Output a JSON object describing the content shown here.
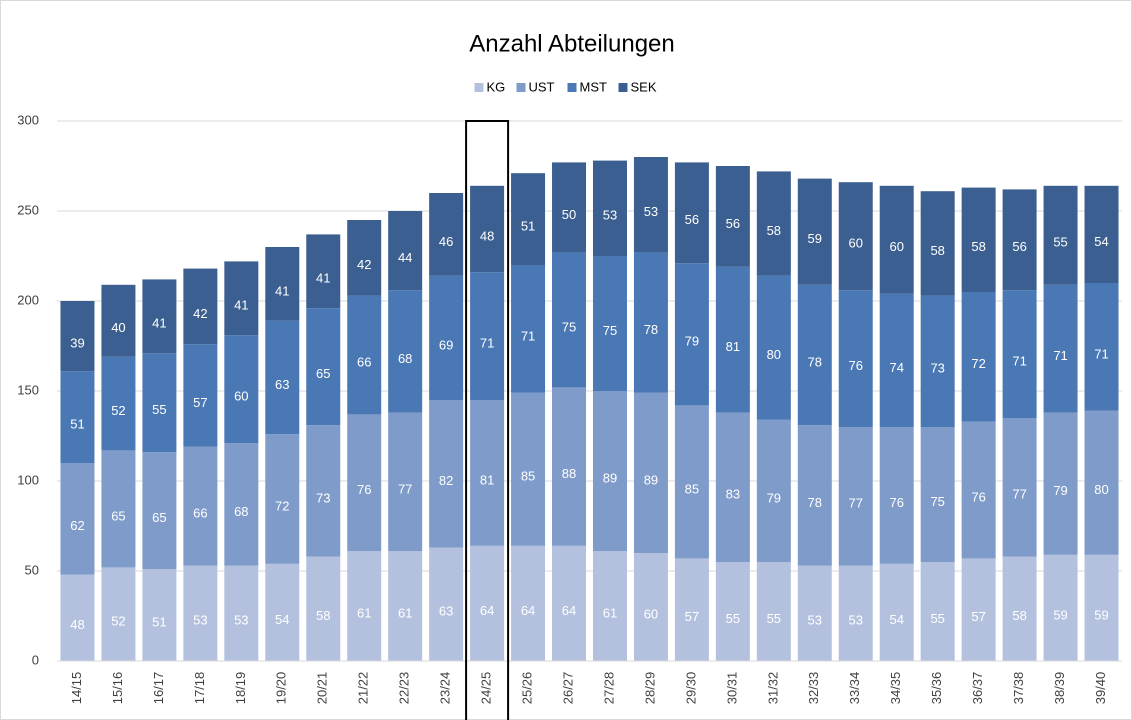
{
  "chart_data": {
    "type": "stacked_bar",
    "title": "Anzahl Abteilungen",
    "categories": [
      "14/15",
      "15/16",
      "16/17",
      "17/18",
      "18/19",
      "19/20",
      "20/21",
      "21/22",
      "22/23",
      "23/24",
      "24/25",
      "25/26",
      "26/27",
      "27/28",
      "28/29",
      "29/30",
      "30/31",
      "31/32",
      "32/33",
      "33/34",
      "34/35",
      "35/36",
      "36/37",
      "37/38",
      "38/39",
      "39/40"
    ],
    "series": [
      {
        "name": "KG",
        "color": "#b4c1de",
        "values": [
          48,
          52,
          51,
          53,
          53,
          54,
          58,
          61,
          61,
          63,
          64,
          64,
          64,
          61,
          60,
          57,
          55,
          55,
          53,
          53,
          54,
          55,
          57,
          58,
          59,
          59
        ]
      },
      {
        "name": "UST",
        "color": "#7f9bca",
        "values": [
          62,
          65,
          65,
          66,
          68,
          72,
          73,
          76,
          77,
          82,
          81,
          85,
          88,
          89,
          89,
          85,
          83,
          79,
          78,
          77,
          76,
          75,
          76,
          77,
          79,
          80
        ]
      },
      {
        "name": "MST",
        "color": "#4a78b5",
        "values": [
          51,
          52,
          55,
          57,
          60,
          63,
          65,
          66,
          68,
          69,
          71,
          71,
          75,
          75,
          78,
          79,
          81,
          80,
          78,
          76,
          74,
          73,
          72,
          71,
          71,
          71
        ]
      },
      {
        "name": "SEK",
        "color": "#3b5f90",
        "values": [
          39,
          40,
          41,
          42,
          41,
          41,
          41,
          42,
          44,
          46,
          48,
          51,
          50,
          53,
          53,
          56,
          56,
          58,
          59,
          60,
          60,
          58,
          58,
          56,
          55,
          54
        ]
      }
    ],
    "ylim": [
      0,
      300
    ],
    "yticks": [
      0,
      50,
      100,
      150,
      200,
      250,
      300
    ],
    "grid": true,
    "legend": "top",
    "highlight": "24/25"
  }
}
